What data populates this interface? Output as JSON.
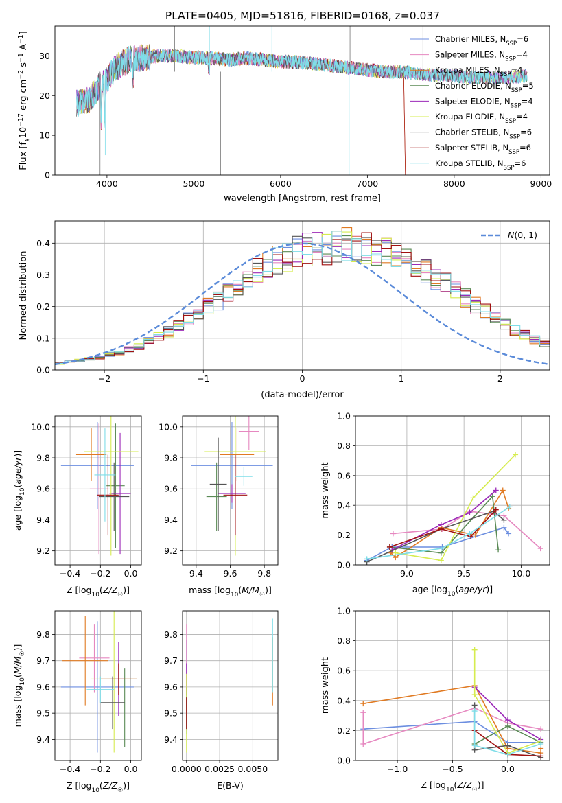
{
  "series_colors": {
    "Chabrier MILES": "#6c8ee0",
    "Salpeter MILES": "#e688c0",
    "Kroupa MILES": "#e07a22",
    "Chabrier ELODIE": "#5a8a55",
    "Salpeter ELODIE": "#9c2ab8",
    "Kroupa ELODIE": "#d6ec4f",
    "Chabrier STELIB": "#555555",
    "Salpeter STELIB": "#a01010",
    "Kroupa STELIB": "#7fdde8"
  },
  "chart_data": [
    {
      "id": "spectrum",
      "type": "line",
      "title": "PLATE=0405, MJD=51816, FIBERID=0168, z=0.037",
      "xlabel": "wavelength [Angstrom, rest frame]",
      "ylabel": "Flux [f_λ 10^-17 erg cm^-2 s^-1 A^-1]",
      "xlim": [
        3400,
        9100
      ],
      "ylim": [
        0,
        37.5
      ],
      "xticks": [
        "4000",
        "5000",
        "6000",
        "7000",
        "8000",
        "9000"
      ],
      "yticks": [
        "0",
        "10",
        "20",
        "30"
      ],
      "legend_position": "top-right",
      "legend": [
        {
          "name": "Chabrier MILES",
          "nssp": "6"
        },
        {
          "name": "Salpeter MILES",
          "nssp": "4"
        },
        {
          "name": "Kroupa MILES",
          "nssp": "4"
        },
        {
          "name": "Chabrier ELODIE",
          "nssp": "5"
        },
        {
          "name": "Salpeter ELODIE",
          "nssp": "4"
        },
        {
          "name": "Kroupa ELODIE",
          "nssp": "4"
        },
        {
          "name": "Chabrier STELIB",
          "nssp": "6"
        },
        {
          "name": "Salpeter STELIB",
          "nssp": "6"
        },
        {
          "name": "Kroupa STELIB",
          "nssp": "6"
        }
      ],
      "continuum": [
        [
          3650,
          18
        ],
        [
          3800,
          19
        ],
        [
          3900,
          22
        ],
        [
          4000,
          24
        ],
        [
          4100,
          27
        ],
        [
          4250,
          29
        ],
        [
          4400,
          29.5
        ],
        [
          4600,
          30
        ],
        [
          4800,
          30
        ],
        [
          5000,
          29.5
        ],
        [
          5200,
          29.5
        ],
        [
          5400,
          29
        ],
        [
          5600,
          29.5
        ],
        [
          5800,
          29
        ],
        [
          6000,
          28.5
        ],
        [
          6200,
          28.5
        ],
        [
          6400,
          28
        ],
        [
          6600,
          27.5
        ],
        [
          6800,
          27
        ],
        [
          7000,
          26.5
        ],
        [
          7200,
          26
        ],
        [
          7400,
          26
        ],
        [
          7600,
          25.5
        ],
        [
          7800,
          25
        ],
        [
          8000,
          25
        ],
        [
          8200,
          24.5
        ],
        [
          8400,
          24.5
        ],
        [
          8600,
          24.5
        ],
        [
          8800,
          25
        ]
      ],
      "grid": false
    },
    {
      "id": "residuals",
      "type": "histogram",
      "xlabel": "(data-model)/error",
      "ylabel": "Normed distribution",
      "xlim": [
        -2.5,
        2.5
      ],
      "ylim": [
        0,
        0.47
      ],
      "xticks": [
        "−2",
        "−1",
        "0",
        "1",
        "2"
      ],
      "yticks": [
        "0.0",
        "0.1",
        "0.2",
        "0.3",
        "0.4"
      ],
      "legend_label": "N(0,1)",
      "legend_position": "top-right",
      "reference_curve": "normal(0,1)",
      "bin_width": 0.1,
      "base_values": [
        0.02,
        0.025,
        0.03,
        0.035,
        0.04,
        0.05,
        0.055,
        0.065,
        0.075,
        0.09,
        0.105,
        0.12,
        0.14,
        0.16,
        0.18,
        0.2,
        0.22,
        0.24,
        0.265,
        0.285,
        0.31,
        0.33,
        0.345,
        0.36,
        0.37,
        0.38,
        0.385,
        0.385,
        0.39,
        0.395,
        0.39,
        0.385,
        0.38,
        0.37,
        0.36,
        0.345,
        0.33,
        0.31,
        0.29,
        0.27,
        0.25,
        0.225,
        0.205,
        0.185,
        0.165,
        0.145,
        0.125,
        0.11,
        0.095,
        0.08
      ],
      "grid": true
    },
    {
      "id": "z-age",
      "type": "errorbar",
      "xlabel": "Z [log10(Z/Z☉)]",
      "ylabel": "age [log10(age/yr)]",
      "xlim": [
        -0.5,
        0.07
      ],
      "ylim": [
        9.11,
        10.07
      ],
      "xticks": [
        "−0.4",
        "−0.2",
        "0.0"
      ],
      "yticks": [
        "9.2",
        "9.4",
        "9.6",
        "9.8",
        "10.0"
      ],
      "points": [
        {
          "series": "Chabrier MILES",
          "x": -0.22,
          "xerr": 0.24,
          "y": 9.75,
          "yerr": 0.28
        },
        {
          "series": "Salpeter MILES",
          "x": -0.21,
          "xerr": 0.06,
          "y": 9.6,
          "yerr": 0.42
        },
        {
          "series": "Kroupa MILES",
          "x": -0.26,
          "xerr": 0.1,
          "y": 9.82,
          "yerr": 0.17
        },
        {
          "series": "Chabrier ELODIE",
          "x": -0.1,
          "xerr": 0.06,
          "y": 9.62,
          "yerr": 0.4
        },
        {
          "series": "Salpeter ELODIE",
          "x": -0.07,
          "xerr": 0.07,
          "y": 9.57,
          "yerr": 0.39
        },
        {
          "series": "Kroupa ELODIE",
          "x": -0.13,
          "xerr": 0.18,
          "y": 9.84,
          "yerr": 0.67
        },
        {
          "series": "Chabrier STELIB",
          "x": -0.11,
          "xerr": 0.1,
          "y": 9.55,
          "yerr": 0.22
        },
        {
          "series": "Salpeter STELIB",
          "x": -0.15,
          "xerr": 0.07,
          "y": 9.56,
          "yerr": 0.26
        },
        {
          "series": "Kroupa STELIB",
          "x": -0.17,
          "xerr": 0.07,
          "y": 9.69,
          "yerr": 0.3
        }
      ],
      "grid": true
    },
    {
      "id": "mass-age",
      "type": "errorbar",
      "xlabel": "mass [log10(M/M☉)]",
      "ylabel": "",
      "xlim": [
        9.32,
        9.88
      ],
      "ylim": [
        9.11,
        10.07
      ],
      "xticks": [
        "9.4",
        "9.6",
        "9.8"
      ],
      "yticks": [
        "9.2",
        "9.4",
        "9.6",
        "9.8",
        "10.0"
      ],
      "points": [
        {
          "series": "Chabrier MILES",
          "x": 9.61,
          "xerr": 0.24,
          "y": 9.75,
          "yerr": 0.28
        },
        {
          "series": "Salpeter MILES",
          "x": 9.71,
          "xerr": 0.06,
          "y": 9.97,
          "yerr": 0.12
        },
        {
          "series": "Kroupa MILES",
          "x": 9.64,
          "xerr": 0.1,
          "y": 9.82,
          "yerr": 0.17
        },
        {
          "series": "Chabrier ELODIE",
          "x": 9.52,
          "xerr": 0.06,
          "y": 9.55,
          "yerr": 0.22
        },
        {
          "series": "Salpeter ELODIE",
          "x": 9.61,
          "xerr": 0.08,
          "y": 9.57,
          "yerr": 0.06
        },
        {
          "series": "Kroupa ELODIE",
          "x": 9.63,
          "xerr": 0.18,
          "y": 9.84,
          "yerr": 0.67
        },
        {
          "series": "Chabrier STELIB",
          "x": 9.53,
          "xerr": 0.05,
          "y": 9.63,
          "yerr": 0.3
        },
        {
          "series": "Salpeter STELIB",
          "x": 9.63,
          "xerr": 0.07,
          "y": 9.56,
          "yerr": 0.26
        },
        {
          "series": "Kroupa STELIB",
          "x": 9.68,
          "xerr": 0.05,
          "y": 9.68,
          "yerr": 0.06
        }
      ],
      "grid": true
    },
    {
      "id": "age-weight",
      "type": "line",
      "xlabel": "age [log10(age/yr)]",
      "ylabel": "mass weight",
      "xlim": [
        8.55,
        10.25
      ],
      "ylim": [
        0,
        1
      ],
      "xticks": [
        "9.0",
        "9.5",
        "10.0"
      ],
      "yticks": [
        "0.0",
        "0.2",
        "0.4",
        "0.6",
        "0.8",
        "1.0"
      ],
      "series": [
        {
          "name": "Chabrier MILES",
          "x": [
            8.65,
            8.87,
            9.31,
            9.85,
            9.89
          ],
          "y": [
            0.03,
            0.12,
            0.12,
            0.25,
            0.21
          ]
        },
        {
          "name": "Salpeter MILES",
          "x": [
            8.88,
            9.31,
            9.55,
            9.85,
            10.17
          ],
          "y": [
            0.21,
            0.24,
            0.36,
            0.33,
            0.11
          ]
        },
        {
          "name": "Kroupa MILES",
          "x": [
            8.86,
            8.9,
            9.3,
            9.6,
            9.84,
            9.89
          ],
          "y": [
            0.08,
            0.05,
            0.25,
            0.2,
            0.5,
            0.38
          ]
        },
        {
          "name": "Chabrier ELODIE",
          "x": [
            8.85,
            9.3,
            9.75,
            9.8
          ],
          "y": [
            0.12,
            0.08,
            0.46,
            0.1
          ]
        },
        {
          "name": "Salpeter ELODIE",
          "x": [
            8.87,
            9.3,
            9.55,
            9.78
          ],
          "y": [
            0.1,
            0.27,
            0.35,
            0.5
          ]
        },
        {
          "name": "Kroupa ELODIE",
          "x": [
            8.9,
            9.3,
            9.58,
            9.95
          ],
          "y": [
            0.08,
            0.03,
            0.45,
            0.74
          ]
        },
        {
          "name": "Chabrier STELIB",
          "x": [
            8.65,
            9.3,
            9.76,
            9.85
          ],
          "y": [
            0.02,
            0.24,
            0.36,
            0.3
          ]
        },
        {
          "name": "Salpeter STELIB",
          "x": [
            8.85,
            9.3,
            9.56,
            9.78
          ],
          "y": [
            0.12,
            0.24,
            0.19,
            0.37
          ]
        },
        {
          "name": "Kroupa STELIB",
          "x": [
            8.65,
            9.3,
            9.55,
            9.9
          ],
          "y": [
            0.04,
            0.11,
            0.21,
            0.39
          ]
        }
      ],
      "grid": true
    },
    {
      "id": "z-mass",
      "type": "errorbar",
      "xlabel": "Z [log10(Z/Z☉)]",
      "ylabel": "mass [log10(M/M☉)]",
      "xlim": [
        -0.5,
        0.07
      ],
      "ylim": [
        9.32,
        9.89
      ],
      "xticks": [
        "−0.4",
        "−0.2",
        "0.0"
      ],
      "yticks": [
        "9.4",
        "9.5",
        "9.6",
        "9.7",
        "9.8"
      ],
      "points": [
        {
          "series": "Chabrier MILES",
          "x": -0.22,
          "xerr": 0.24,
          "y": 9.6,
          "yerr": 0.25
        },
        {
          "series": "Salpeter MILES",
          "x": -0.24,
          "xerr": 0.1,
          "y": 9.71,
          "yerr": 0.13
        },
        {
          "series": "Kroupa MILES",
          "x": -0.3,
          "xerr": 0.15,
          "y": 9.7,
          "yerr": 0.17
        },
        {
          "series": "Chabrier ELODIE",
          "x": -0.04,
          "xerr": 0.1,
          "y": 9.52,
          "yerr": 0.15
        },
        {
          "series": "Salpeter ELODIE",
          "x": -0.08,
          "xerr": 0.04,
          "y": 9.63,
          "yerr": 0.14
        },
        {
          "series": "Kroupa ELODIE",
          "x": -0.11,
          "xerr": 0.15,
          "y": 9.63,
          "yerr": 0.28
        },
        {
          "series": "Chabrier STELIB",
          "x": -0.12,
          "xerr": 0.08,
          "y": 9.54,
          "yerr": 0.1
        },
        {
          "series": "Salpeter STELIB",
          "x": -0.08,
          "xerr": 0.12,
          "y": 9.63,
          "yerr": 0.06
        },
        {
          "series": "Kroupa STELIB",
          "x": -0.2,
          "xerr": 0.09,
          "y": 9.59,
          "yerr": 0.05
        }
      ],
      "grid": true
    },
    {
      "id": "ebv-mass",
      "type": "errorbar",
      "xlabel": "E(B-V)",
      "ylabel": "",
      "xlim": [
        -0.0003,
        0.0069
      ],
      "ylim": [
        9.32,
        9.89
      ],
      "xticks": [
        "0.0000",
        "0.0025",
        "0.0050"
      ],
      "yticks": [
        "9.4",
        "9.5",
        "9.6",
        "9.7",
        "9.8"
      ],
      "points": [
        {
          "series": "Chabrier MILES",
          "x": 0.0,
          "xerr": 0,
          "y": 9.6,
          "yerr": 0.18
        },
        {
          "series": "Salpeter MILES",
          "x": 0.0,
          "xerr": 0,
          "y": 9.71,
          "yerr": 0.13
        },
        {
          "series": "Kroupa MILES",
          "x": 0.0065,
          "xerr": 0,
          "y": 9.66,
          "yerr": 0.13
        },
        {
          "series": "Chabrier ELODIE",
          "x": 0.0,
          "xerr": 0,
          "y": 9.52,
          "yerr": 0.08
        },
        {
          "series": "Salpeter ELODIE",
          "x": 0.0,
          "xerr": 0,
          "y": 9.63,
          "yerr": 0.06
        },
        {
          "series": "Kroupa ELODIE",
          "x": 0.0,
          "xerr": 0,
          "y": 9.5,
          "yerr": 0.15
        },
        {
          "series": "Chabrier STELIB",
          "x": 0.0,
          "xerr": 0,
          "y": 9.5,
          "yerr": 0.06
        },
        {
          "series": "Salpeter STELIB",
          "x": 0.0,
          "xerr": 0,
          "y": 9.5,
          "yerr": 0.06
        },
        {
          "series": "Kroupa STELIB",
          "x": 0.0065,
          "xerr": 0,
          "y": 9.72,
          "yerr": 0.14
        }
      ],
      "grid": true
    },
    {
      "id": "z-weight",
      "type": "line",
      "xlabel": "Z [log10(Z/Z☉)]",
      "ylabel": "mass weight",
      "xlim": [
        -1.38,
        0.38
      ],
      "ylim": [
        0,
        1
      ],
      "xticks": [
        "−1.0",
        "−0.5",
        "0.0"
      ],
      "yticks": [
        "0.0",
        "0.2",
        "0.4",
        "0.6",
        "0.8",
        "1.0"
      ],
      "series": [
        {
          "name": "Chabrier MILES",
          "x": [
            -1.31,
            -0.3,
            0.0,
            0.3
          ],
          "y": [
            0.21,
            0.26,
            0.12,
            0.12
          ]
        },
        {
          "name": "Salpeter MILES",
          "x": [
            -1.31,
            -1.31,
            -0.3,
            0.0,
            0.3
          ],
          "y": [
            0.32,
            0.11,
            0.35,
            0.25,
            0.21
          ]
        },
        {
          "name": "Kroupa MILES",
          "x": [
            -1.31,
            -0.3,
            0.0,
            0.3,
            0.3
          ],
          "y": [
            0.38,
            0.5,
            0.08,
            0.05,
            0.08
          ]
        },
        {
          "name": "Chabrier ELODIE",
          "x": [
            -0.3,
            0.0,
            0.3
          ],
          "y": [
            0.11,
            0.23,
            0.12
          ]
        },
        {
          "name": "Salpeter ELODIE",
          "x": [
            -0.3,
            0.0,
            0.3
          ],
          "y": [
            0.49,
            0.27,
            0.14
          ]
        },
        {
          "name": "Kroupa ELODIE",
          "x": [
            -0.3,
            -0.3,
            0.0,
            0.3
          ],
          "y": [
            0.74,
            0.44,
            0.05,
            0.13
          ]
        },
        {
          "name": "Chabrier STELIB",
          "x": [
            -0.3,
            -0.3,
            0.0,
            0.3
          ],
          "y": [
            0.37,
            0.07,
            0.1,
            0.02
          ]
        },
        {
          "name": "Salpeter STELIB",
          "x": [
            -0.3,
            0.0,
            0.3
          ],
          "y": [
            0.2,
            0.04,
            0.03
          ]
        },
        {
          "name": "Kroupa STELIB",
          "x": [
            -0.3,
            -0.3,
            0.0,
            0.3
          ],
          "y": [
            0.33,
            0.1,
            0.04,
            0.11
          ]
        }
      ],
      "grid": true
    }
  ]
}
